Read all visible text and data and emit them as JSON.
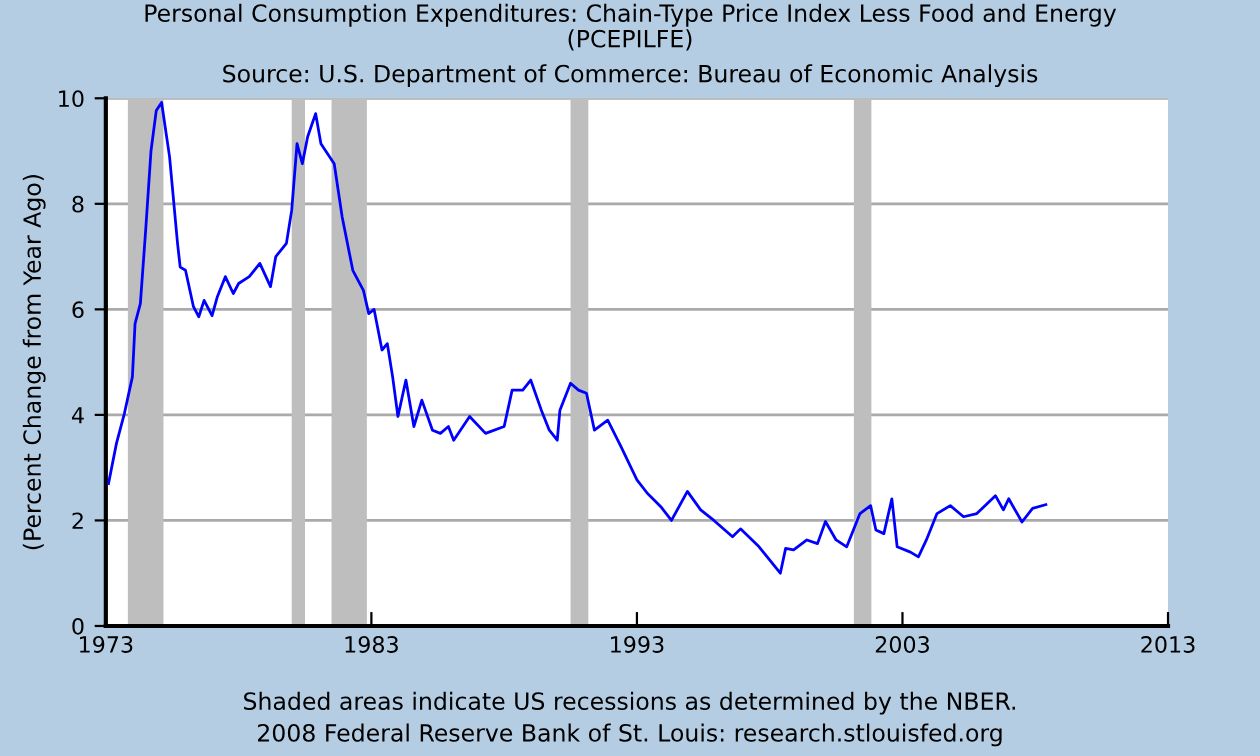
{
  "chart_data": {
    "type": "line",
    "title": "Personal Consumption Expenditures: Chain-Type Price Index Less Food and Energy\n(PCEPILFE)",
    "subtitle": "Source: U.S. Department of Commerce: Bureau of Economic Analysis",
    "ylabel": "(Percent Change from Year Ago)",
    "annotations": [
      "Shaded areas indicate US recessions as determined by the NBER.",
      "2008 Federal Reserve Bank of St. Louis: research.stlouisfed.org"
    ],
    "series": [
      {
        "color": "#0000ff",
        "x": [
          1973.1,
          1973.4,
          1973.7,
          1974.0,
          1974.1,
          1974.3,
          1974.5,
          1974.7,
          1974.9,
          1975.1,
          1975.4,
          1975.7,
          1975.8,
          1976.0,
          1976.3,
          1976.5,
          1976.7,
          1977.0,
          1977.2,
          1977.5,
          1977.8,
          1978.0,
          1978.4,
          1978.8,
          1979.2,
          1979.4,
          1979.8,
          1980.0,
          1980.2,
          1980.4,
          1980.6,
          1980.9,
          1981.1,
          1981.6,
          1981.9,
          1982.3,
          1982.7,
          1982.9,
          1983.1,
          1983.4,
          1983.6,
          1983.8,
          1984.0,
          1984.3,
          1984.6,
          1984.9,
          1985.3,
          1985.6,
          1985.9,
          1986.1,
          1986.7,
          1987.3,
          1988.0,
          1988.3,
          1988.7,
          1989.0,
          1989.4,
          1989.7,
          1990.0,
          1990.1,
          1990.5,
          1990.8,
          1991.1,
          1991.4,
          1991.9,
          1992.4,
          1993.0,
          1993.4,
          1993.9,
          1994.3,
          1994.9,
          1995.4,
          1995.9,
          1996.6,
          1996.9,
          1997.6,
          1998.4,
          1998.6,
          1998.9,
          1999.4,
          1999.8,
          2000.1,
          2000.5,
          2000.9,
          2001.4,
          2001.8,
          2002.0,
          2002.3,
          2002.6,
          2002.8,
          2003.3,
          2003.6,
          2003.9,
          2004.3,
          2004.8,
          2005.3,
          2005.8,
          2006.5,
          2006.8,
          2007.0,
          2007.5,
          2007.9,
          2008.4
        ],
        "values": [
          2.7,
          3.46,
          4.03,
          4.72,
          5.73,
          6.11,
          7.5,
          9.0,
          9.77,
          9.92,
          8.89,
          7.25,
          6.8,
          6.74,
          6.05,
          5.86,
          6.17,
          5.88,
          6.24,
          6.62,
          6.3,
          6.49,
          6.62,
          6.87,
          6.43,
          7.0,
          7.25,
          7.88,
          9.14,
          8.76,
          9.27,
          9.71,
          9.14,
          8.76,
          7.75,
          6.74,
          6.36,
          5.92,
          6.0,
          5.23,
          5.35,
          4.72,
          3.97,
          4.66,
          3.78,
          4.28,
          3.71,
          3.65,
          3.78,
          3.52,
          3.97,
          3.65,
          3.78,
          4.47,
          4.47,
          4.66,
          4.09,
          3.71,
          3.52,
          4.09,
          4.6,
          4.47,
          4.41,
          3.71,
          3.9,
          3.4,
          2.77,
          2.51,
          2.26,
          2.0,
          2.55,
          2.2,
          2.0,
          1.69,
          1.84,
          1.5,
          1.0,
          1.47,
          1.44,
          1.63,
          1.56,
          1.98,
          1.63,
          1.5,
          2.13,
          2.28,
          1.82,
          1.75,
          2.41,
          1.5,
          1.4,
          1.31,
          1.63,
          2.13,
          2.28,
          2.07,
          2.13,
          2.47,
          2.2,
          2.41,
          1.97,
          2.23,
          2.3
        ]
      }
    ],
    "bands": [
      {
        "axis": "x",
        "from": 1973.83,
        "to": 1975.17,
        "color": "#bebebe"
      },
      {
        "axis": "x",
        "from": 1980.0,
        "to": 1980.5,
        "color": "#bebebe"
      },
      {
        "axis": "x",
        "from": 1981.5,
        "to": 1982.83,
        "color": "#bebebe"
      },
      {
        "axis": "x",
        "from": 1990.5,
        "to": 1991.17,
        "color": "#bebebe"
      },
      {
        "axis": "x",
        "from": 2001.17,
        "to": 2001.83,
        "color": "#bebebe"
      }
    ],
    "xlim": [
      1973,
      2013
    ],
    "xticks": [
      1973,
      1983,
      1993,
      2003,
      2013
    ],
    "ylim": [
      0,
      10
    ],
    "yticks": [
      0,
      2,
      4,
      6,
      8,
      10
    ],
    "grid": "y",
    "marker": "none",
    "line_style": "solid",
    "legend": false
  }
}
